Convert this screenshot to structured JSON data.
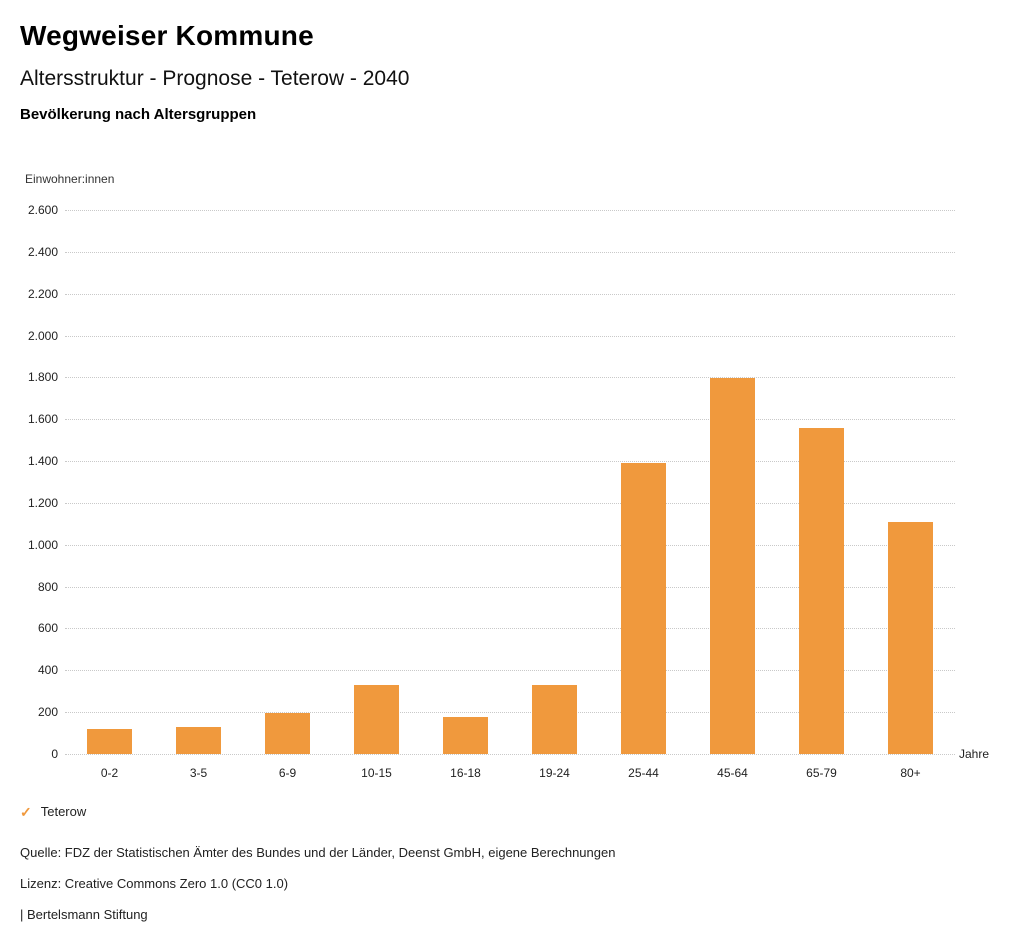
{
  "header": {
    "title": "Wegweiser Kommune",
    "subtitle": "Altersstruktur - Prognose - Teterow - 2040",
    "chart_heading": "Bevölkerung nach Altersgruppen"
  },
  "chart_data": {
    "type": "bar",
    "title": "Bevölkerung nach Altersgruppen",
    "ylabel": "Einwohner:innen",
    "xlabel": "Jahre",
    "categories": [
      "0-2",
      "3-5",
      "6-9",
      "10-15",
      "16-18",
      "19-24",
      "25-44",
      "45-64",
      "65-79",
      "80+"
    ],
    "values": [
      120,
      130,
      195,
      330,
      175,
      330,
      1390,
      1795,
      1560,
      1110
    ],
    "series": [
      {
        "name": "Teterow",
        "values": [
          120,
          130,
          195,
          330,
          175,
          330,
          1390,
          1795,
          1560,
          1110
        ]
      }
    ],
    "ylim": [
      0,
      2600
    ],
    "ytick_step": 200,
    "grid": "horizontal-dotted",
    "legend_position": "bottom-left",
    "bar_color": "#F0993D"
  },
  "legend": {
    "check_icon": "✓",
    "label": "Teterow"
  },
  "footer": {
    "source": "Quelle: FDZ der Statistischen Ämter des Bundes und der Länder, Deenst GmbH, eigene Berechnungen",
    "license": "Lizenz: Creative Commons Zero 1.0 (CC0 1.0)",
    "attribution": "| Bertelsmann Stiftung"
  }
}
